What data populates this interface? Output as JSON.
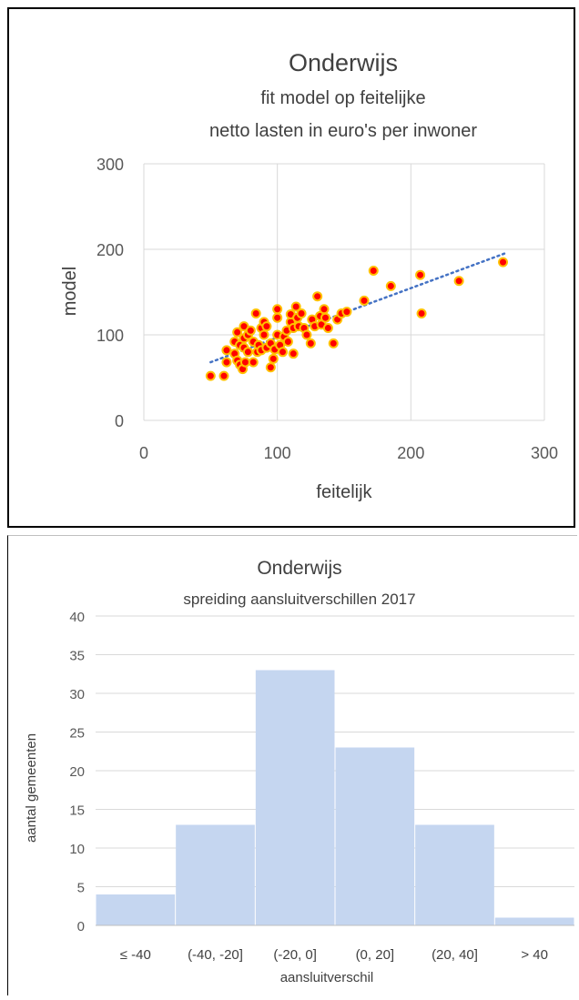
{
  "charts": [
    {
      "type": "scatter",
      "title": "Onderwijs",
      "subtitle_lines": [
        "fit model op feitelijke",
        "netto lasten in euro's per inwoner"
      ],
      "xlabel": "feitelijk",
      "ylabel": "model",
      "xlim": [
        0,
        300
      ],
      "ylim": [
        0,
        300
      ],
      "xticks": [
        0,
        100,
        200,
        300
      ],
      "yticks": [
        0,
        100,
        200,
        300
      ],
      "grid": true,
      "marker_fill": "#ff0000",
      "marker_edge": "#ffc000",
      "trendline_color": "#4472c4",
      "trendline": {
        "x": [
          50,
          270
        ],
        "y": [
          68,
          195
        ]
      },
      "points": [
        [
          50,
          52
        ],
        [
          60,
          52
        ],
        [
          62,
          68
        ],
        [
          62,
          82
        ],
        [
          68,
          78
        ],
        [
          68,
          92
        ],
        [
          70,
          103
        ],
        [
          70,
          70
        ],
        [
          72,
          88
        ],
        [
          72,
          65
        ],
        [
          74,
          60
        ],
        [
          75,
          110
        ],
        [
          75,
          96
        ],
        [
          75,
          85
        ],
        [
          76,
          68
        ],
        [
          78,
          100
        ],
        [
          78,
          80
        ],
        [
          80,
          105
        ],
        [
          82,
          92
        ],
        [
          82,
          68
        ],
        [
          84,
          125
        ],
        [
          85,
          80
        ],
        [
          86,
          88
        ],
        [
          88,
          108
        ],
        [
          88,
          82
        ],
        [
          90,
          115
        ],
        [
          90,
          100
        ],
        [
          92,
          110
        ],
        [
          92,
          85
        ],
        [
          95,
          90
        ],
        [
          95,
          62
        ],
        [
          97,
          72
        ],
        [
          98,
          83
        ],
        [
          100,
          100
        ],
        [
          100,
          130
        ],
        [
          100,
          120
        ],
        [
          102,
          88
        ],
        [
          104,
          80
        ],
        [
          105,
          98
        ],
        [
          107,
          105
        ],
        [
          108,
          92
        ],
        [
          110,
          115
        ],
        [
          110,
          124
        ],
        [
          112,
          108
        ],
        [
          112,
          78
        ],
        [
          114,
          133
        ],
        [
          115,
          120
        ],
        [
          116,
          110
        ],
        [
          118,
          125
        ],
        [
          120,
          108
        ],
        [
          122,
          100
        ],
        [
          125,
          90
        ],
        [
          126,
          118
        ],
        [
          128,
          110
        ],
        [
          130,
          145
        ],
        [
          132,
          122
        ],
        [
          133,
          112
        ],
        [
          135,
          130
        ],
        [
          136,
          120
        ],
        [
          138,
          108
        ],
        [
          142,
          90
        ],
        [
          145,
          118
        ],
        [
          148,
          125
        ],
        [
          152,
          127
        ],
        [
          165,
          140
        ],
        [
          172,
          175
        ],
        [
          185,
          157
        ],
        [
          207,
          170
        ],
        [
          208,
          125
        ],
        [
          236,
          163
        ],
        [
          269,
          185
        ]
      ]
    },
    {
      "type": "bar",
      "title": "Onderwijs",
      "subtitle": "spreiding aansluitverschillen 2017",
      "xlabel": "aansluitverschil",
      "ylabel": "aantal gemeenten",
      "ylim": [
        0,
        40
      ],
      "yticks": [
        0,
        5,
        10,
        15,
        20,
        25,
        30,
        35,
        40
      ],
      "categories": [
        "≤ -40",
        "(-40, -20]",
        "(-20, 0]",
        "(0, 20]",
        "(20, 40]",
        "> 40"
      ],
      "values": [
        4,
        13,
        33,
        23,
        13,
        1
      ],
      "bar_color": "#c5d6f0",
      "grid": true
    }
  ]
}
